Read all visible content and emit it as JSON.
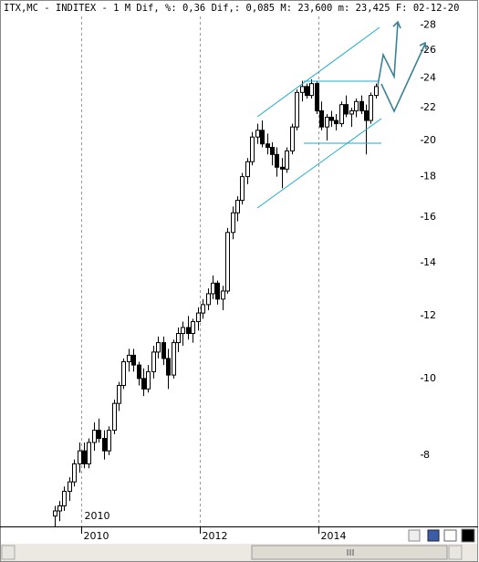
{
  "chart_data": {
    "type": "candlestick",
    "title": "ITX,MC - INDITEX -  1 M Dif, %: 0,36 Dif,: 0,085 M: 23,600 m: 23,425 F: 02-12-20",
    "categories": [
      null,
      null,
      null,
      null,
      null,
      null,
      "2010",
      null,
      null,
      null,
      null,
      null,
      null,
      null,
      null,
      null,
      null,
      null,
      null,
      null,
      null,
      null,
      null,
      null,
      null,
      null,
      null,
      null,
      null,
      null,
      "2012",
      null,
      null,
      null,
      null,
      null,
      null,
      null,
      null,
      null,
      null,
      null,
      null,
      null,
      null,
      null,
      null,
      null,
      null,
      null,
      null,
      null,
      null,
      null,
      "2014",
      null,
      null,
      null,
      null,
      null,
      null,
      null,
      null,
      null,
      null,
      null
    ],
    "open": [
      6.7,
      6.8,
      6.9,
      7.2,
      7.4,
      7.8,
      8.1,
      7.8,
      8.3,
      8.6,
      8.4,
      8.1,
      8.6,
      9.3,
      9.8,
      10.5,
      10.7,
      10.4,
      10.0,
      9.7,
      10.2,
      10.8,
      11.1,
      10.6,
      10.1,
      11.1,
      11.4,
      11.6,
      11.4,
      11.8,
      12.1,
      12.4,
      12.8,
      13.2,
      12.6,
      12.9,
      15.3,
      16.2,
      16.8,
      18.0,
      18.8,
      20.2,
      20.6,
      19.8,
      19.6,
      19.2,
      18.5,
      18.4,
      19.4,
      20.8,
      23.0,
      23.4,
      22.8,
      23.6,
      21.8,
      20.8,
      21.4,
      21.2,
      21.0,
      22.2,
      21.6,
      21.8,
      22.4,
      21.8,
      21.2,
      22.8
    ],
    "high": [
      6.9,
      7.0,
      7.3,
      7.5,
      7.9,
      8.3,
      8.3,
      8.4,
      8.8,
      8.9,
      8.6,
      8.7,
      9.4,
      9.9,
      10.6,
      10.9,
      10.9,
      10.5,
      10.3,
      10.4,
      11.0,
      11.3,
      11.3,
      10.9,
      11.2,
      11.6,
      11.8,
      12.0,
      11.9,
      12.3,
      12.6,
      13.0,
      13.5,
      13.3,
      13.1,
      15.5,
      16.5,
      17.0,
      18.2,
      19.0,
      20.5,
      21.0,
      21.2,
      20.4,
      19.9,
      19.6,
      19.0,
      19.6,
      21.0,
      23.2,
      23.8,
      23.6,
      23.9,
      23.8,
      22.4,
      21.6,
      21.8,
      21.6,
      22.4,
      22.8,
      22.0,
      22.6,
      22.8,
      22.2,
      23.0,
      23.6
    ],
    "low": [
      6.5,
      6.6,
      6.8,
      7.0,
      7.3,
      7.6,
      7.7,
      7.7,
      8.1,
      8.3,
      7.9,
      8.0,
      8.5,
      9.1,
      9.7,
      10.2,
      10.2,
      9.8,
      9.5,
      9.6,
      10.0,
      10.6,
      10.4,
      9.7,
      10.0,
      10.8,
      11.0,
      11.2,
      11.1,
      11.5,
      11.9,
      12.2,
      12.6,
      12.4,
      12.2,
      12.8,
      15.0,
      15.8,
      16.6,
      17.6,
      18.6,
      19.8,
      19.6,
      19.2,
      18.6,
      18.0,
      17.4,
      18.2,
      19.2,
      20.6,
      22.4,
      22.6,
      22.6,
      21.6,
      20.6,
      20.0,
      20.8,
      20.6,
      20.8,
      21.4,
      20.8,
      21.4,
      21.6,
      19.2,
      21.0,
      22.6
    ],
    "close": [
      6.8,
      6.9,
      7.2,
      7.4,
      7.8,
      8.1,
      7.8,
      8.3,
      8.6,
      8.4,
      8.1,
      8.6,
      9.3,
      9.8,
      10.5,
      10.7,
      10.4,
      10.0,
      9.7,
      10.2,
      10.8,
      11.1,
      10.6,
      10.1,
      11.1,
      11.4,
      11.6,
      11.4,
      11.8,
      12.1,
      12.4,
      12.8,
      13.2,
      12.6,
      12.9,
      15.3,
      16.2,
      16.8,
      18.0,
      18.8,
      20.2,
      20.6,
      19.8,
      19.6,
      19.2,
      18.5,
      18.4,
      19.4,
      20.8,
      23.0,
      23.4,
      22.8,
      23.6,
      21.8,
      20.8,
      21.4,
      21.2,
      21.0,
      22.2,
      21.6,
      21.8,
      22.4,
      21.8,
      21.2,
      22.8,
      23.4
    ],
    "up_color": "#ffffff",
    "down_color": "#000000",
    "ylim": [
      6.5,
      28.7
    ],
    "log_scale": true,
    "yticks": [
      8,
      10,
      12,
      14,
      16,
      18,
      20,
      22,
      24,
      26,
      28
    ]
  }
}
